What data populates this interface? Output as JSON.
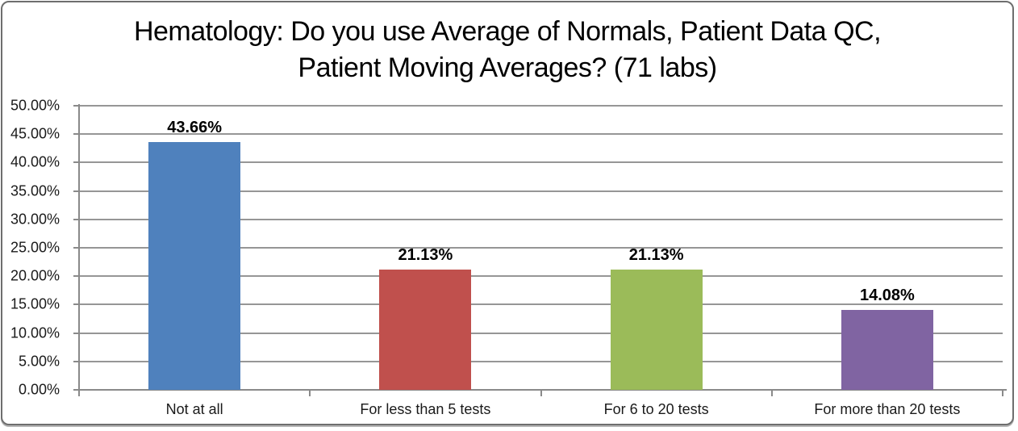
{
  "chart_data": {
    "type": "bar",
    "title": "Hematology: Do you use Average of Normals, Patient Data QC, Patient Moving Averages? (71 labs)",
    "categories": [
      "Not at all",
      "For less than 5 tests",
      "For 6 to 20 tests",
      "For more than 20 tests"
    ],
    "values": [
      43.66,
      21.13,
      21.13,
      14.08
    ],
    "data_labels": [
      "43.66%",
      "21.13%",
      "21.13%",
      "14.08%"
    ],
    "bar_colors": [
      "#4F81BD",
      "#C0504D",
      "#9BBB59",
      "#8064A2"
    ],
    "xlabel": "",
    "ylabel": "",
    "ylim": [
      0,
      50
    ],
    "ytick_interval": 5,
    "ytick_labels": [
      "0.00%",
      "5.00%",
      "10.00%",
      "15.00%",
      "20.00%",
      "25.00%",
      "30.00%",
      "35.00%",
      "40.00%",
      "45.00%",
      "50.00%"
    ],
    "grid": true,
    "legend": false,
    "grid_color": "#969696",
    "axis_color": "#8a8a8a",
    "label_color": "#000000"
  }
}
